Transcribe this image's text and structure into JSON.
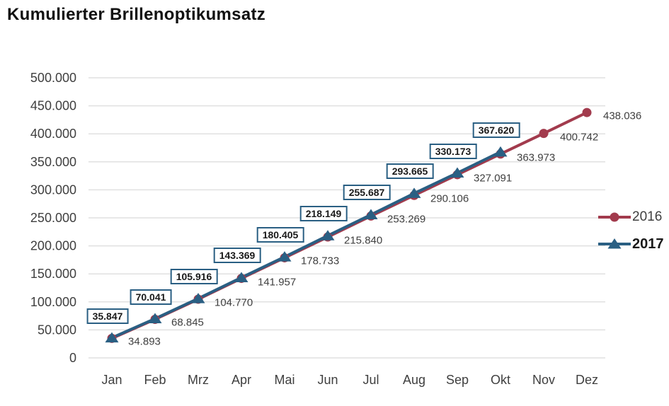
{
  "chart_data": {
    "type": "line",
    "title": "Kumulierter Brillenoptikumsatz",
    "categories": [
      "Jan",
      "Feb",
      "Mrz",
      "Apr",
      "Mai",
      "Jun",
      "Jul",
      "Aug",
      "Sep",
      "Okt",
      "Nov",
      "Dez"
    ],
    "ylim": [
      0,
      500000
    ],
    "y_tick_step": 50000,
    "y_tick_labels": [
      "0",
      "50.000",
      "100.000",
      "150.000",
      "200.000",
      "250.000",
      "300.000",
      "350.000",
      "400.000",
      "450.000",
      "500.000"
    ],
    "grid": true,
    "gridline_color": "#e0e0e0",
    "axis_text_color": "#3f3f3f",
    "legend_position": "right",
    "series": [
      {
        "name": "2016",
        "color": "#a23b4d",
        "marker": "circle",
        "label_style": "plain",
        "values": [
          34893,
          68845,
          104770,
          141957,
          178733,
          215840,
          253269,
          290106,
          327091,
          363973,
          400742,
          438036
        ],
        "labels": [
          "34.893",
          "68.845",
          "104.770",
          "141.957",
          "178.733",
          "215.840",
          "253.269",
          "290.106",
          "327.091",
          "363.973",
          "400.742",
          "438.036"
        ]
      },
      {
        "name": "2017",
        "color": "#2a5f83",
        "marker": "triangle",
        "label_style": "boxed",
        "values": [
          35847,
          70041,
          105916,
          143369,
          180405,
          218149,
          255687,
          293665,
          330173,
          367620
        ],
        "labels": [
          "35.847",
          "70.041",
          "105.916",
          "143.369",
          "180.405",
          "218.149",
          "255.687",
          "293.665",
          "330.173",
          "367.620"
        ]
      }
    ]
  }
}
